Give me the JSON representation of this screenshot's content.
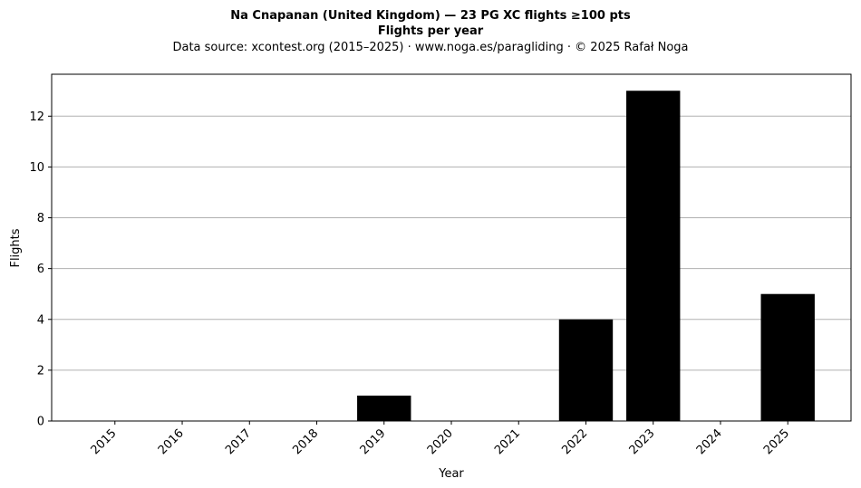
{
  "chart_data": {
    "type": "bar",
    "title": "Na Cnapanan (United Kingdom)  —  23 PG XC flights ≥100 pts",
    "title2": "Flights per year",
    "subtitle": "Data source: xcontest.org (2015–2025)  ·  www.noga.es/paragliding  ·  © 2025 Rafał Noga",
    "xlabel": "Year",
    "ylabel": "Flights",
    "categories": [
      "2015",
      "2016",
      "2017",
      "2018",
      "2019",
      "2020",
      "2021",
      "2022",
      "2023",
      "2024",
      "2025"
    ],
    "values": [
      0,
      0,
      0,
      0,
      1,
      0,
      0,
      4,
      13,
      0,
      5
    ],
    "ylim": [
      0,
      13.65
    ],
    "yticks": [
      "0",
      "2",
      "4",
      "6",
      "8",
      "10",
      "12"
    ],
    "grid": "horizontal",
    "colors": {
      "bar": "#000000",
      "grid": "#b0b0b0",
      "axis": "#000000"
    }
  }
}
